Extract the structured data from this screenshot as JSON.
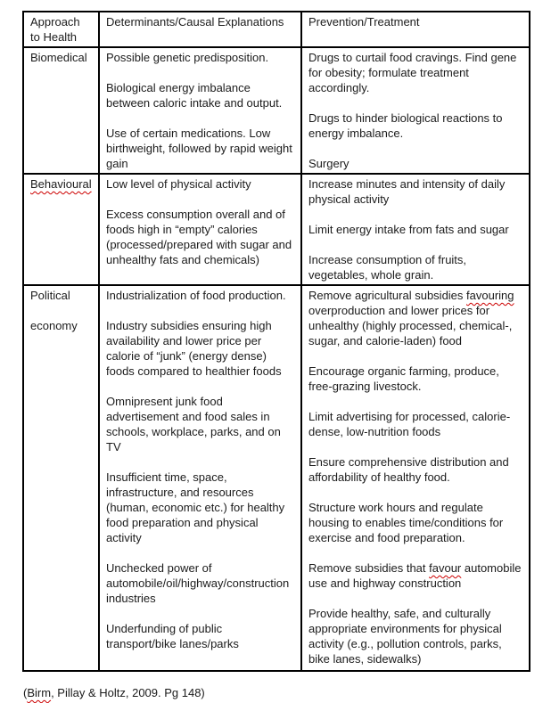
{
  "page": {
    "background": "#ffffff",
    "text_color": "#1b1b1b",
    "border_color": "#000000",
    "spellcheck_squiggle_color": "#cc0000"
  },
  "table": {
    "headers": {
      "approach": "Approach to Health",
      "determinants": "Determinants/Causal Explanations",
      "prevention": "Prevention/Treatment"
    },
    "rows": [
      {
        "approach": [
          "Biomedical"
        ],
        "determinants": [
          "Possible genetic predisposition.",
          "Biological energy imbalance between caloric intake and output.",
          "Use of certain medications. Low birthweight, followed by rapid weight gain"
        ],
        "prevention": [
          "Drugs to curtail food cravings. Find gene for obesity; formulate treatment accordingly.",
          "Drugs to hinder biological reactions to energy imbalance.",
          "Surgery"
        ]
      },
      {
        "approach": [
          "Behavioural"
        ],
        "determinants": [
          "Low level of physical activity",
          "Excess consumption overall and of foods high in “empty” calories (processed/prepared with sugar and unhealthy fats and chemicals)"
        ],
        "prevention": [
          "Increase minutes and intensity of daily physical activity",
          "Limit energy intake from fats and sugar",
          "Increase consumption of fruits, vegetables, whole grain."
        ]
      },
      {
        "approach": [
          "Political",
          "economy"
        ],
        "determinants": [
          "Industrialization of food production.",
          "Industry subsidies ensuring high availability and lower price per calorie of “junk” (energy dense) foods compared to healthier foods",
          "Omnipresent junk food advertisement and food sales in schools, workplace, parks, and on TV",
          "Insufficient time, space, infrastructure, and resources (human, economic etc.) for healthy food preparation and physical activity",
          "Unchecked power of automobile/oil/highway/construction industries",
          "Underfunding of public transport/bike lanes/parks"
        ],
        "prevention": [
          {
            "pre": "Remove agricultural subsidies ",
            "word": "favouring",
            "post": " overproduction and lower prices for unhealthy (highly processed, chemical-, sugar, and calorie-laden) food"
          },
          "Encourage organic farming, produce, free-grazing livestock.",
          "Limit advertising for processed, calorie-dense, low-nutrition foods",
          "Ensure comprehensive distribution and affordability of healthy food.",
          "Structure work hours and regulate housing to enables time/conditions for exercise and food preparation.",
          {
            "pre": "Remove subsidies that ",
            "word": "favour",
            "post": " automobile use and highway construction"
          },
          "Provide healthy, safe, and culturally appropriate environments for physical activity (e.g., pollution controls, parks, bike lanes, sidewalks)"
        ]
      }
    ]
  },
  "citation": {
    "pre": "(",
    "word": "Birm",
    "post": ", Pillay & Holtz, 2009. Pg 148)"
  }
}
